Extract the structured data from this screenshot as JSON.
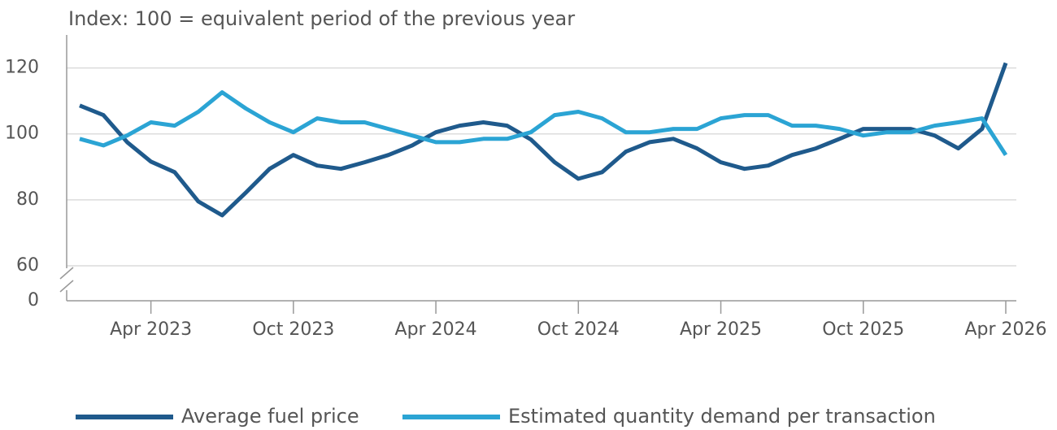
{
  "chart_data": {
    "type": "line",
    "title": "Index: 100 = equivalent period of the previous year",
    "x": [
      "2023-01",
      "2023-02",
      "2023-03",
      "2023-04",
      "2023-05",
      "2023-06",
      "2023-07",
      "2023-08",
      "2023-09",
      "2023-10",
      "2023-11",
      "2023-12",
      "2024-01",
      "2024-02",
      "2024-03",
      "2024-04",
      "2024-05",
      "2024-06",
      "2024-07",
      "2024-08",
      "2024-09",
      "2024-10",
      "2024-11",
      "2024-12",
      "2025-01",
      "2025-02",
      "2025-03",
      "2025-04",
      "2025-05",
      "2025-06",
      "2025-07",
      "2025-08",
      "2025-09",
      "2025-10",
      "2025-11",
      "2025-12",
      "2026-01",
      "2026-02",
      "2026-03",
      "2026-04"
    ],
    "xticks": [
      {
        "value": "2023-04",
        "label": "Apr 2023"
      },
      {
        "value": "2023-10",
        "label": "Oct 2023"
      },
      {
        "value": "2024-04",
        "label": "Apr 2024"
      },
      {
        "value": "2024-10",
        "label": "Oct 2024"
      },
      {
        "value": "2025-04",
        "label": "Apr 2025"
      },
      {
        "value": "2025-10",
        "label": "Oct 2025"
      },
      {
        "value": "2026-04",
        "label": "Apr 2026"
      }
    ],
    "series": [
      {
        "name": "Average fuel price",
        "color": "#1f5a8c",
        "values": [
          108.6,
          105.7,
          97.5,
          91.6,
          88.4,
          79.5,
          75.3,
          82.2,
          89.4,
          93.6,
          90.4,
          89.4,
          91.4,
          93.6,
          96.5,
          100.5,
          102.5,
          103.5,
          102.5,
          98.3,
          91.4,
          86.4,
          88.4,
          94.6,
          97.5,
          98.5,
          95.6,
          91.4,
          89.4,
          90.4,
          93.6,
          95.6,
          98.5,
          101.5,
          101.5,
          101.5,
          99.5,
          95.6,
          101.5,
          121.5
        ]
      },
      {
        "name": "Estimated quantity demand per transaction",
        "color": "#2ba4d4",
        "values": [
          98.5,
          96.5,
          99.5,
          103.5,
          102.5,
          106.7,
          112.6,
          107.7,
          103.5,
          100.5,
          104.7,
          103.5,
          103.5,
          101.5,
          99.5,
          97.5,
          97.5,
          98.5,
          98.5,
          100.5,
          105.7,
          106.7,
          104.7,
          100.5,
          100.5,
          101.5,
          101.5,
          104.7,
          105.7,
          105.7,
          102.5,
          102.5,
          101.5,
          99.5,
          100.5,
          100.5,
          102.5,
          103.5,
          104.7,
          93.6
        ]
      }
    ],
    "ylim": [
      0,
      130
    ],
    "yticks": [
      0,
      60,
      80,
      100,
      120
    ],
    "axis_break": [
      0,
      60
    ],
    "grid": true,
    "legend": "bottom"
  }
}
